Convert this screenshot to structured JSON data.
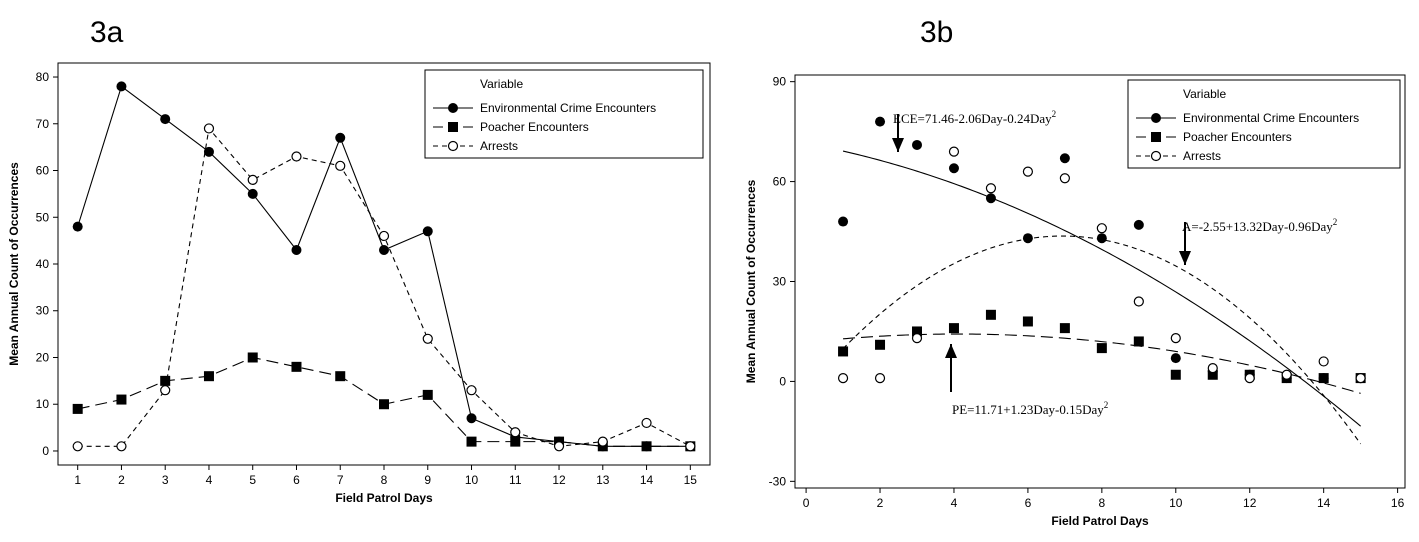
{
  "panels": {
    "a_label": "3a",
    "b_label": "3b"
  },
  "chart_data": [
    {
      "id": "3a",
      "type": "line",
      "xlabel": "Field Patrol Days",
      "ylabel": "Mean Annual Count of Occurrences",
      "x": [
        1,
        2,
        3,
        4,
        5,
        6,
        7,
        8,
        9,
        10,
        11,
        12,
        13,
        14,
        15
      ],
      "xticks": [
        "1",
        "2",
        "3",
        "4",
        "5",
        "6",
        "7",
        "8",
        "9",
        "10",
        "11",
        "12",
        "13",
        "14",
        "15"
      ],
      "ylim": [
        0,
        80
      ],
      "yticks": [
        0,
        10,
        20,
        30,
        40,
        50,
        60,
        70,
        80
      ],
      "legend": {
        "title": "Variable",
        "position": "top-right"
      },
      "series": [
        {
          "name": "Environmental Crime Encounters",
          "marker": "filled-circle",
          "line": "solid",
          "values": [
            48,
            78,
            71,
            64,
            55,
            43,
            67,
            43,
            47,
            7,
            3,
            2,
            1,
            1,
            1
          ]
        },
        {
          "name": "Poacher Encounters",
          "marker": "filled-square",
          "line": "long-dash",
          "values": [
            9,
            11,
            15,
            16,
            20,
            18,
            16,
            10,
            12,
            2,
            2,
            2,
            1,
            1,
            1
          ]
        },
        {
          "name": "Arrests",
          "marker": "open-circle",
          "line": "short-dash",
          "values": [
            1,
            1,
            13,
            69,
            58,
            63,
            61,
            46,
            24,
            13,
            4,
            1,
            2,
            6,
            1
          ]
        }
      ]
    },
    {
      "id": "3b",
      "type": "scatter",
      "xlabel": "Field Patrol Days",
      "ylabel": "Mean Annual Count of Occurrences",
      "x": [
        1,
        2,
        3,
        4,
        5,
        6,
        7,
        8,
        9,
        10,
        11,
        12,
        13,
        14,
        15
      ],
      "xlim": [
        -0.3,
        16.2
      ],
      "xticks": [
        0,
        2,
        4,
        6,
        8,
        10,
        12,
        14,
        16
      ],
      "ylim": [
        -32,
        92
      ],
      "yticks": [
        -30,
        0,
        30,
        60,
        90
      ],
      "legend": {
        "title": "Variable",
        "position": "top-right"
      },
      "series": [
        {
          "name": "Environmental Crime Encounters",
          "marker": "filled-circle",
          "line": "solid",
          "values": [
            48,
            78,
            71,
            64,
            55,
            43,
            67,
            43,
            47,
            7,
            3,
            2,
            1,
            1,
            1
          ],
          "fit": [
            71.46,
            -2.06,
            -0.24
          ]
        },
        {
          "name": "Poacher Encounters",
          "marker": "filled-square",
          "line": "long-dash",
          "values": [
            9,
            11,
            15,
            16,
            20,
            18,
            16,
            10,
            12,
            2,
            2,
            2,
            1,
            1,
            1
          ],
          "fit": [
            11.71,
            1.23,
            -0.15
          ]
        },
        {
          "name": "Arrests",
          "marker": "open-circle",
          "line": "short-dash",
          "values": [
            1,
            1,
            13,
            69,
            58,
            63,
            61,
            46,
            24,
            13,
            4,
            1,
            2,
            6,
            1
          ],
          "fit": [
            -2.55,
            13.32,
            -0.96
          ]
        }
      ],
      "annotations": [
        {
          "series": "Environmental Crime Encounters",
          "text": "ECE=71.46-2.06Day-0.24Day",
          "sup": "2"
        },
        {
          "series": "Arrests",
          "text": "A=-2.55+13.32Day-0.96Day",
          "sup": "2"
        },
        {
          "series": "Poacher Encounters",
          "text": "PE=11.71+1.23Day-0.15Day",
          "sup": "2"
        }
      ]
    }
  ]
}
